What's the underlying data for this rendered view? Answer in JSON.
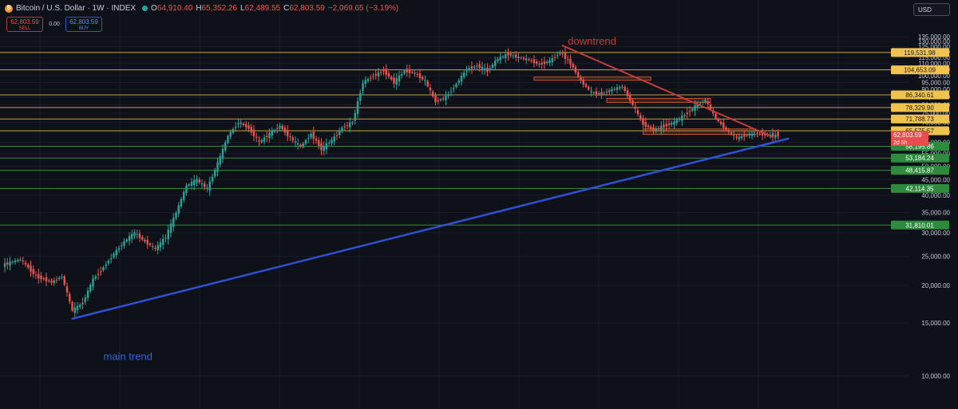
{
  "header": {
    "title": "Bitcoin / U.S. Dollar · 1W · INDEX",
    "ohlc": [
      {
        "k": "O",
        "v": "64,910.40"
      },
      {
        "k": "H",
        "v": "65,352.26"
      },
      {
        "k": "L",
        "v": "62,489.55"
      },
      {
        "k": "C",
        "v": "62,803.59"
      }
    ],
    "change": "−2,069.65 (−3.19%)"
  },
  "trade": {
    "sell_price": "62,803.59",
    "sell_label": "SELL",
    "spread": "0.00",
    "buy_price": "62,803.59",
    "buy_label": "BUY"
  },
  "currency": "USD",
  "colors": {
    "background": "#0f1118",
    "up": "#26a69a",
    "down": "#ef5350",
    "resistance": "#e6b84a",
    "support": "#43a047",
    "trend": "#2e51d6",
    "downtrend": "#c43d3d"
  },
  "chart_data": {
    "type": "candlestick",
    "timeframe": "1W",
    "y_scale": "log",
    "ylim": [
      8500,
      140000
    ],
    "y_ticks": [
      10000,
      15000,
      20000,
      25000,
      30000,
      35000,
      40000,
      45000,
      50000,
      55000,
      60000,
      65000,
      70000,
      75000,
      80000,
      85000,
      90000,
      95000,
      100000,
      105000,
      110000,
      115000,
      120000,
      125000,
      130000,
      135000
    ],
    "y_tick_labels": [
      "10,000.00",
      "15,000.00",
      "20,000.00",
      "25,000.00",
      "30,000.00",
      "35,000.00",
      "40,000.00",
      "45,000.00",
      "50,000.00",
      "55,000.00",
      "60,000.00",
      "65,000.00",
      "70,000.00",
      "75,000.00",
      "80,000.00",
      "85,000.00",
      "90,000.00",
      "95,000.00",
      "100,000.00",
      "105,000.00",
      "110,000.00",
      "115,000.00",
      "120,000.00",
      "125,000.00",
      "130,000.00",
      "135,000.00"
    ],
    "price_path": [
      [
        0,
        23500
      ],
      [
        6,
        24500
      ],
      [
        12,
        21500
      ],
      [
        18,
        20500
      ],
      [
        22,
        21500
      ],
      [
        26,
        16500
      ],
      [
        30,
        17500
      ],
      [
        34,
        21000
      ],
      [
        38,
        23000
      ],
      [
        42,
        25500
      ],
      [
        46,
        28000
      ],
      [
        50,
        30000
      ],
      [
        54,
        28000
      ],
      [
        58,
        26500
      ],
      [
        62,
        29000
      ],
      [
        66,
        35000
      ],
      [
        70,
        43000
      ],
      [
        74,
        45000
      ],
      [
        78,
        42000
      ],
      [
        82,
        51000
      ],
      [
        86,
        63000
      ],
      [
        90,
        70000
      ],
      [
        94,
        67000
      ],
      [
        98,
        60000
      ],
      [
        102,
        64000
      ],
      [
        106,
        68000
      ],
      [
        110,
        62000
      ],
      [
        114,
        58000
      ],
      [
        118,
        64000
      ],
      [
        122,
        57000
      ],
      [
        126,
        61000
      ],
      [
        130,
        67000
      ],
      [
        134,
        70000
      ],
      [
        138,
        95000
      ],
      [
        142,
        100000
      ],
      [
        146,
        104000
      ],
      [
        150,
        95000
      ],
      [
        154,
        104000
      ],
      [
        158,
        102000
      ],
      [
        162,
        96000
      ],
      [
        166,
        82000
      ],
      [
        170,
        85000
      ],
      [
        174,
        94000
      ],
      [
        178,
        105000
      ],
      [
        182,
        108000
      ],
      [
        186,
        104000
      ],
      [
        190,
        114000
      ],
      [
        194,
        118000
      ],
      [
        198,
        115000
      ],
      [
        202,
        113000
      ],
      [
        206,
        109000
      ],
      [
        210,
        112000
      ],
      [
        214,
        120000
      ],
      [
        218,
        110000
      ],
      [
        222,
        96000
      ],
      [
        226,
        88000
      ],
      [
        230,
        87000
      ],
      [
        234,
        90000
      ],
      [
        238,
        92000
      ],
      [
        242,
        80000
      ],
      [
        246,
        69000
      ],
      [
        250,
        66000
      ],
      [
        254,
        68000
      ],
      [
        258,
        70000
      ],
      [
        262,
        74000
      ],
      [
        266,
        79000
      ],
      [
        270,
        83000
      ],
      [
        274,
        72000
      ],
      [
        278,
        66000
      ],
      [
        282,
        62000
      ],
      [
        286,
        63500
      ],
      [
        290,
        64000
      ],
      [
        294,
        63500
      ],
      [
        298,
        62803
      ]
    ],
    "resistance_levels": [
      {
        "value": 119531.98,
        "label": "119,531.98"
      },
      {
        "value": 104653.09,
        "label": "104,653.09"
      },
      {
        "value": 86340.61,
        "label": "86,340.61"
      },
      {
        "value": 78329.9,
        "label": "78,329.90"
      },
      {
        "value": 71788.73,
        "label": "71,788.73"
      },
      {
        "value": 65575.57,
        "label": "65,575.57"
      }
    ],
    "current_price": {
      "value": 62803.59,
      "label": "62,803.59",
      "countdown": "2d 5h"
    },
    "support_levels": [
      {
        "value": 58195.86,
        "label": "58,195.86"
      },
      {
        "value": 53184.24,
        "label": "53,184.24"
      },
      {
        "value": 48415.87,
        "label": "48,415.87"
      },
      {
        "value": 42114.35,
        "label": "42,114.35"
      },
      {
        "value": 31810.01,
        "label": "31,810.01"
      }
    ],
    "zones": [
      {
        "x0": 204,
        "x1": 249,
        "low": 97500,
        "high": 99000
      },
      {
        "x0": 232,
        "x1": 272,
        "low": 81500,
        "high": 84000
      },
      {
        "x0": 246,
        "x1": 289,
        "low": 63800,
        "high": 66500
      }
    ],
    "trendlines": [
      {
        "name": "main trend",
        "from": [
          26,
          15500
        ],
        "to": [
          298,
          60500
        ],
        "extend_to_x": 302
      },
      {
        "name": "downtrend",
        "from": [
          215,
          126000
        ],
        "to": [
          296,
          62500
        ]
      }
    ],
    "annotations": [
      {
        "text": "downtrend",
        "at": [
          217,
          127000
        ]
      },
      {
        "text": "main trend",
        "at": [
          38,
          11300
        ]
      }
    ]
  }
}
